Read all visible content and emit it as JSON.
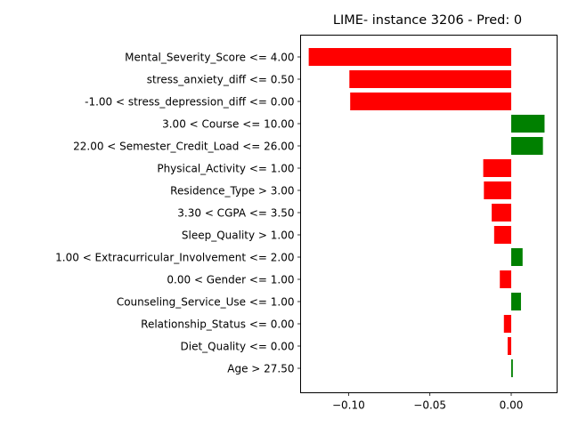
{
  "chart_data": {
    "type": "bar",
    "orientation": "horizontal",
    "title": "LIME- instance 3206 - Pred: 0",
    "xlabel": "",
    "ylabel": "",
    "xlim": [
      -0.1295,
      0.0282
    ],
    "xticks": [
      -0.1,
      -0.05,
      0.0
    ],
    "xtick_labels": [
      "−0.10",
      "−0.05",
      "0.00"
    ],
    "grid": false,
    "colors": {
      "negative": "#ff0000",
      "positive": "#008000"
    },
    "categories": [
      "Mental_Severity_Score <= 4.00",
      "stress_anxiety_diff <= 0.50",
      "-1.00 < stress_depression_diff <= 0.00",
      "3.00 < Course <= 10.00",
      "22.00 < Semester_Credit_Load <= 26.00",
      "Physical_Activity <= 1.00",
      "Residence_Type > 3.00",
      "3.30 < CGPA <= 3.50",
      "Sleep_Quality > 1.00",
      "1.00 < Extracurricular_Involvement <= 2.00",
      "0.00 < Gender <= 1.00",
      "Counseling_Service_Use <= 1.00",
      "Relationship_Status <= 0.00",
      "Diet_Quality <= 0.00",
      "Age > 27.50"
    ],
    "values": [
      -0.1245,
      -0.0995,
      -0.099,
      0.0205,
      0.0195,
      -0.0172,
      -0.0168,
      -0.012,
      -0.0105,
      0.007,
      -0.007,
      0.006,
      -0.0045,
      -0.0022,
      0.001
    ]
  }
}
